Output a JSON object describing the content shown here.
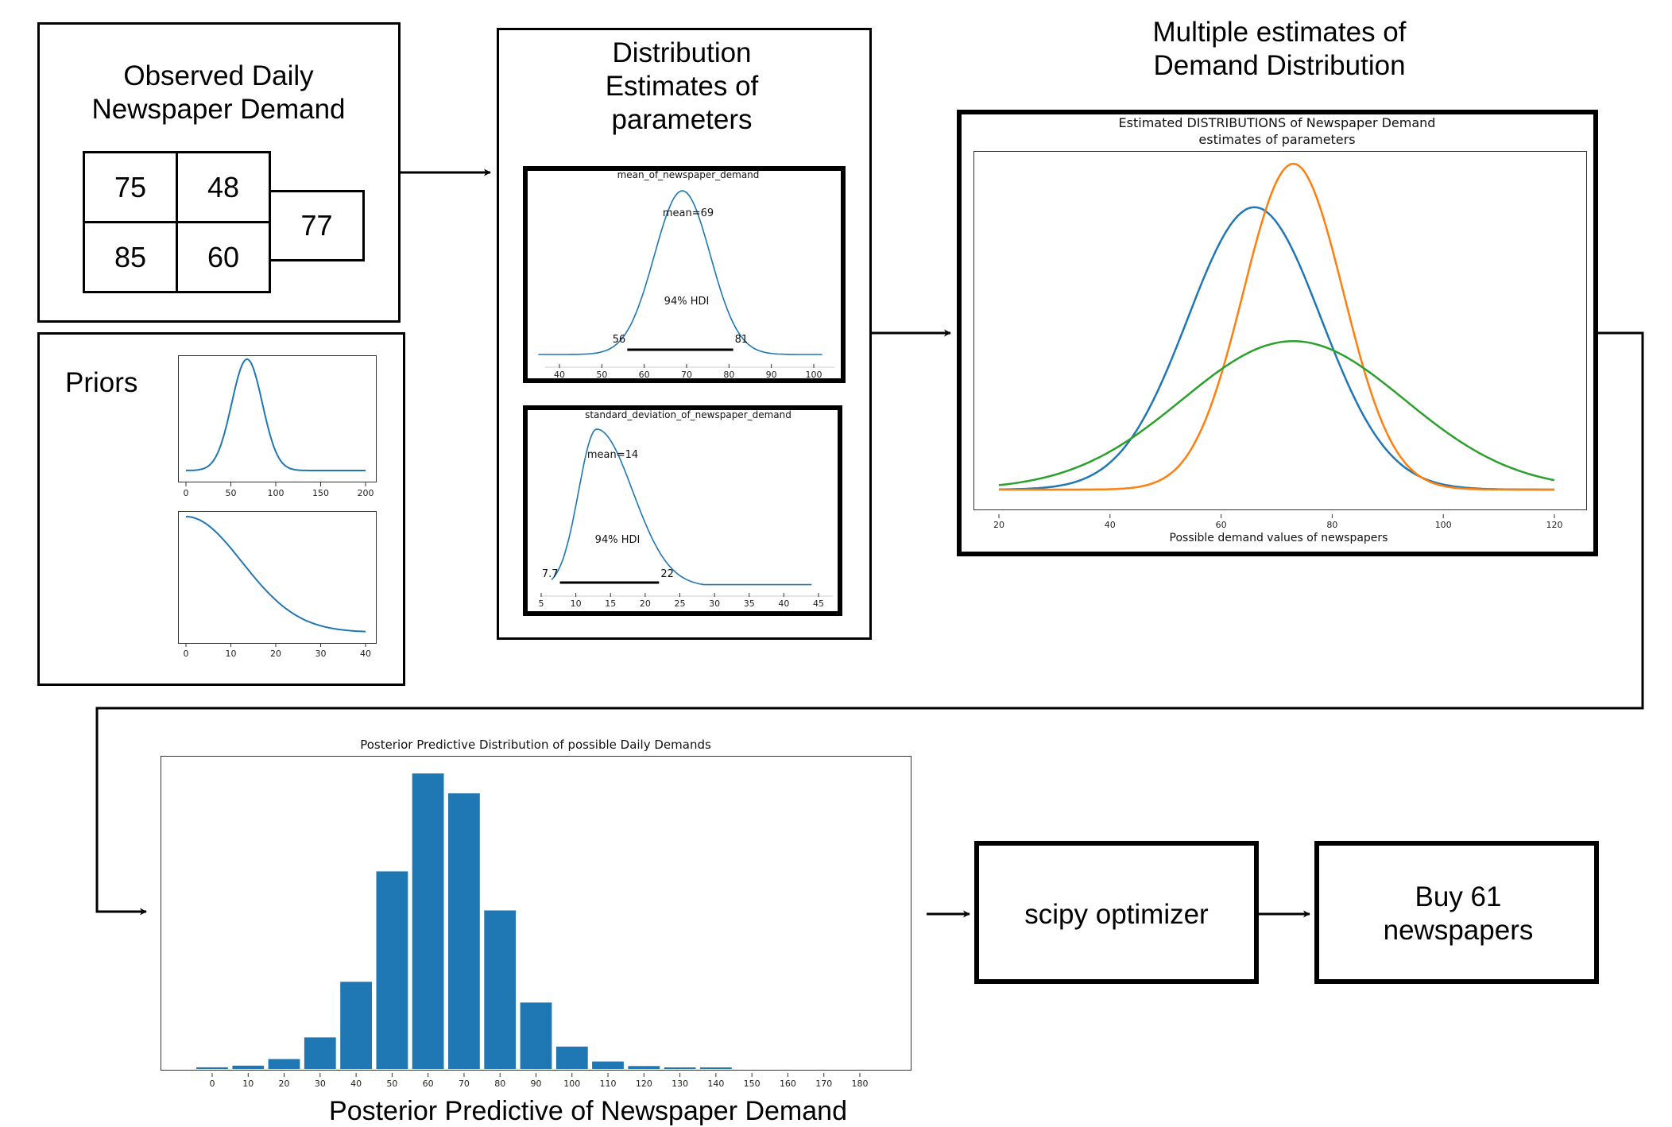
{
  "observed": {
    "title": "Observed Daily Newspaper Demand",
    "cells": [
      "75",
      "48",
      "85",
      "60",
      "77"
    ]
  },
  "priors": {
    "label": "Priors",
    "plot1_ticks": [
      "0",
      "50",
      "100",
      "150",
      "200"
    ],
    "plot2_ticks": [
      "0",
      "10",
      "20",
      "30",
      "40"
    ]
  },
  "distribution": {
    "title": "Distribution Estimates of parameters",
    "mean_plot": {
      "title": "mean_of_newspaper_demand",
      "mean_label": "mean=69",
      "hdi_label": "94% HDI",
      "hdi_low": "56",
      "hdi_high": "81",
      "ticks": [
        "40",
        "50",
        "60",
        "70",
        "80",
        "90",
        "100"
      ]
    },
    "sd_plot": {
      "title": "standard_deviation_of_newspaper_demand",
      "mean_label": "mean=14",
      "hdi_label": "94% HDI",
      "hdi_low": "7.7",
      "hdi_high": "22",
      "ticks": [
        "5",
        "10",
        "15",
        "20",
        "25",
        "30",
        "35",
        "40",
        "45"
      ]
    }
  },
  "multiple": {
    "title": "Multiple estimates of Demand Distribution",
    "chart_title_1": "Estimated DISTRIBUTIONS of Newspaper Demand",
    "chart_title_2": "estimates of parameters",
    "xlabel": "Possible demand values of newspapers",
    "ticks": [
      "20",
      "40",
      "60",
      "80",
      "100",
      "120"
    ],
    "colors": [
      "#1f77b4",
      "#ff7f0e",
      "#2ca02c"
    ]
  },
  "posterior": {
    "chart_title": "Posterior Predictive Distribution of possible Daily Demands",
    "caption": "Posterior Predictive of Newspaper Demand",
    "bar_color": "#1f77b4"
  },
  "optimizer": {
    "label": "scipy optimizer"
  },
  "result": {
    "label": "Buy 61 newspapers"
  },
  "chart_data": [
    {
      "type": "bar",
      "title": "Posterior Predictive Distribution of possible Daily Demands",
      "categories": [
        "0",
        "10",
        "20",
        "30",
        "40",
        "50",
        "60",
        "70",
        "80",
        "90",
        "100",
        "110",
        "120",
        "130",
        "140",
        "150",
        "160",
        "170",
        "180"
      ],
      "values": [
        0.2,
        0.4,
        1.2,
        3.8,
        10.5,
        23.8,
        35.6,
        33.2,
        19.1,
        8.0,
        2.7,
        0.9,
        0.35,
        0.15,
        0.08,
        0,
        0,
        0,
        0
      ],
      "xlabel": "",
      "ylabel": "",
      "ylim": [
        0,
        36
      ]
    },
    {
      "type": "line",
      "title": "Estimated DISTRIBUTIONS of Newspaper Demand",
      "xlabel": "Possible demand values of newspapers",
      "xlim": [
        20,
        120
      ],
      "series": [
        {
          "mu": 66,
          "sigma": 12,
          "peak": 0.78
        },
        {
          "mu": 73,
          "sigma": 9,
          "peak": 0.9
        },
        {
          "mu": 73,
          "sigma": 20,
          "peak": 0.41
        }
      ]
    },
    {
      "type": "line",
      "title": "mean_of_newspaper_demand",
      "xlim": [
        35,
        102
      ],
      "mean": 69,
      "hdi": [
        56,
        81
      ]
    },
    {
      "type": "line",
      "title": "standard_deviation_of_newspaper_demand",
      "xlim": [
        5,
        45
      ],
      "mean": 14,
      "hdi": [
        7.7,
        22
      ]
    }
  ]
}
